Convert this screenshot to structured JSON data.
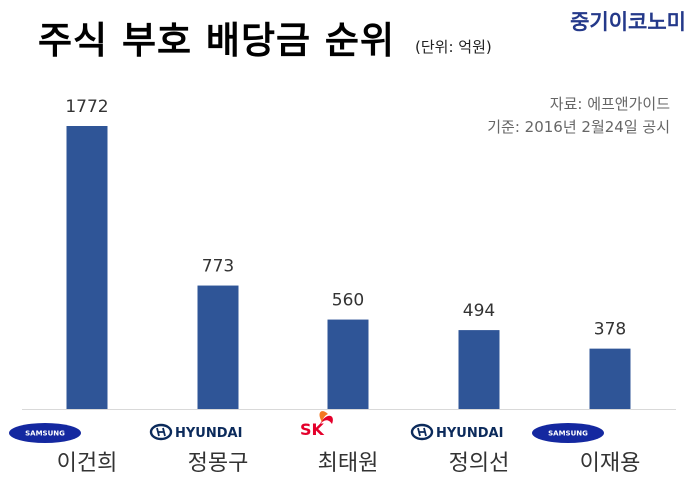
{
  "header": {
    "title": "주식 부호 배당금 순위",
    "unit": "(단위: 억원)",
    "brand": "중기이코노미"
  },
  "source": {
    "line1": "자료: 에프앤가이드",
    "line2": "기준: 2016년 2월24일 공시"
  },
  "colors": {
    "bar": "#2f5597",
    "brand": "#24398a"
  },
  "chart_data": {
    "type": "bar",
    "title": "주식 부호 배당금 순위",
    "ylabel": "(단위: 억원)",
    "categories": [
      "이건희",
      "정몽구",
      "최태원",
      "정의선",
      "이재용"
    ],
    "values": [
      1772,
      773,
      560,
      494,
      378
    ],
    "logos": [
      "SAMSUNG",
      "HYUNDAI",
      "SK",
      "HYUNDAI",
      "SAMSUNG"
    ],
    "ylim": [
      0,
      1772
    ],
    "grid": false
  }
}
